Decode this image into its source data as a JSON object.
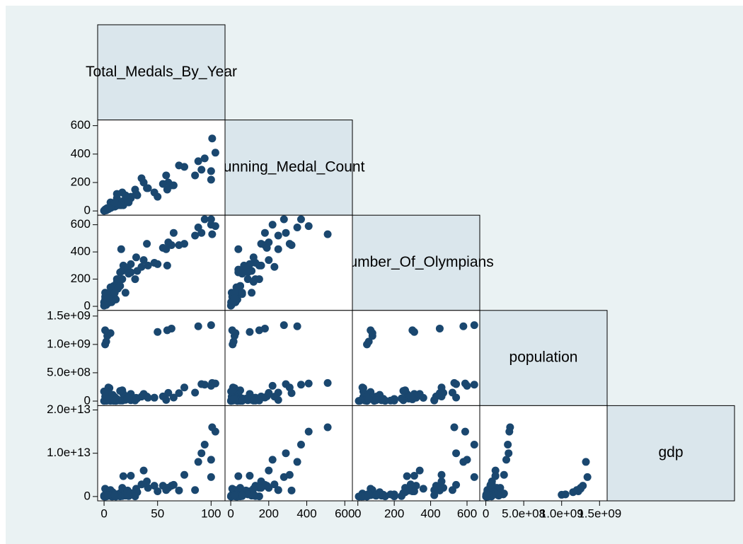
{
  "chart_data": {
    "type": "scatter_matrix",
    "color": "#1a476f",
    "variables": [
      {
        "name": "Total_Medals_By_Year",
        "lim": [
          -6,
          113
        ],
        "ticks": [
          0,
          50,
          100
        ],
        "values": [
          104,
          101,
          94,
          91,
          100,
          88,
          100,
          63,
          59,
          50,
          1,
          2,
          3,
          6,
          1,
          85,
          60,
          70,
          55,
          40,
          65,
          47,
          58,
          37,
          25,
          18,
          41,
          30,
          31,
          18,
          17,
          15,
          5,
          4,
          0,
          2,
          8,
          22,
          25,
          29,
          17,
          20,
          23,
          12,
          8,
          7,
          11,
          9,
          12,
          6,
          16,
          10,
          6,
          1,
          6,
          6,
          15,
          13,
          2,
          0,
          1,
          3,
          4,
          10,
          35,
          75
        ]
      },
      {
        "name": "Running_Medal_Count",
        "lim": [
          -30,
          640
        ],
        "ticks": [
          0,
          200,
          400,
          600
        ],
        "values": [
          410,
          510,
          370,
          290,
          220,
          350,
          280,
          180,
          150,
          100,
          10,
          15,
          20,
          25,
          8,
          250,
          200,
          320,
          190,
          160,
          180,
          130,
          250,
          200,
          100,
          40,
          160,
          120,
          110,
          70,
          50,
          40,
          20,
          12,
          2,
          10,
          40,
          80,
          90,
          150,
          130,
          110,
          60,
          90,
          30,
          25,
          35,
          50,
          120,
          60,
          40,
          30,
          25,
          5,
          30,
          20,
          50,
          40,
          4,
          1,
          3,
          12,
          20,
          60,
          230,
          310
        ]
      },
      {
        "name": "Number_Of_Olympians",
        "lim": [
          -30,
          670
        ],
        "ticks": [
          0,
          200,
          400,
          600
        ],
        "values": [
          590,
          530,
          640,
          540,
          600,
          580,
          640,
          450,
          300,
          310,
          50,
          60,
          80,
          80,
          70,
          520,
          470,
          450,
          430,
          460,
          540,
          320,
          420,
          340,
          310,
          270,
          300,
          360,
          260,
          300,
          260,
          250,
          30,
          25,
          30,
          70,
          120,
          280,
          250,
          200,
          200,
          100,
          240,
          200,
          50,
          30,
          50,
          150,
          180,
          90,
          420,
          60,
          50,
          100,
          140,
          100,
          150,
          130,
          10,
          5,
          20,
          40,
          60,
          100,
          290,
          460
        ]
      },
      {
        "name": "population",
        "lim": [
          -80000000,
          1600000000
        ],
        "ticks": [
          0,
          {
            "value": 500000000,
            "label": "5.0e+08"
          },
          {
            "value": 1000000000,
            "label": "1.0e+09"
          },
          {
            "value": 1500000000,
            "label": "1.5e+09"
          }
        ],
        "values": [
          310000000,
          320000000,
          290000000,
          300000000,
          270000000,
          1320000000,
          1340000000,
          1280000000,
          1250000000,
          1220000000,
          1000000000,
          1050000000,
          1150000000,
          1200000000,
          1250000000,
          150000000,
          145000000,
          140000000,
          82000000,
          81000000,
          62000000,
          60000000,
          20000000,
          127000000,
          127000000,
          126000000,
          60000000,
          58000000,
          48000000,
          32000000,
          190000000,
          180000000,
          230000000,
          240000000,
          170000000,
          160000000,
          110000000,
          44000000,
          16000000,
          11000000,
          10000000,
          22000000,
          47000000,
          38000000,
          35000000,
          75000000,
          2700000,
          4200000,
          9000000,
          4700000,
          11000000,
          72000000,
          75000000,
          80000000,
          40000000,
          46000000,
          9500000,
          16000000,
          5000000,
          3000000,
          20000000,
          10000000,
          30000000,
          15000000,
          80000000,
          240000000
        ]
      },
      {
        "name": "gdp",
        "lim": [
          -1000000000000,
          21000000000000
        ],
        "ticks": [
          0,
          {
            "value": 10000000000000,
            "label": "1.0e+13"
          },
          {
            "value": 20000000000000,
            "label": "2.0e+13"
          }
        ],
        "values": [
          15000000000000,
          16000000000000,
          12000000000000,
          10000000000000,
          8500000000000,
          8000000000000,
          4500000000000,
          2500000000000,
          2000000000000,
          1200000000000,
          400000000000,
          500000000000,
          1000000000000,
          1500000000000,
          1800000000000,
          1500000000000,
          2000000000000,
          1400000000000,
          2500000000000,
          3500000000000,
          2700000000000,
          2500000000000,
          1500000000000,
          6000000000000,
          4800000000000,
          4700000000000,
          2000000000000,
          1800000000000,
          1000000000000,
          1200000000000,
          2000000000000,
          800000000000,
          500000000000,
          700000000000,
          200000000000,
          300000000000,
          1000000000000,
          1400000000000,
          800000000000,
          50000000000,
          100000000000,
          200000000000,
          100000000000,
          500000000000,
          30000000000,
          20000000000,
          10000000000,
          100000000000,
          500000000000,
          400000000000,
          300000000000,
          600000000000,
          300000000000,
          200000000000,
          400000000000,
          300000000000,
          50000000000,
          200000000000,
          20000000000,
          10000000000,
          10000000000,
          100000000000,
          300000000000,
          200000000000,
          2800000000000,
          5000000000000
        ]
      }
    ]
  }
}
